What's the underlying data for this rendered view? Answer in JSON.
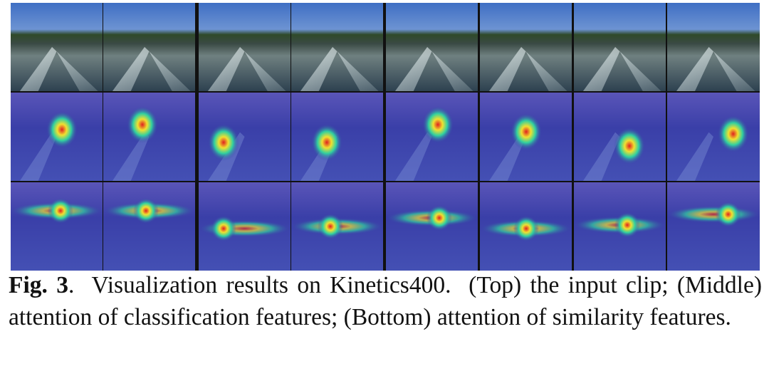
{
  "figure": {
    "label": "Fig. 3",
    "caption": ".  Visualization results on Kinetics400.  (Top) the input clip; (Middle) attention of classification features; (Bottom) attention of similarity features."
  }
}
